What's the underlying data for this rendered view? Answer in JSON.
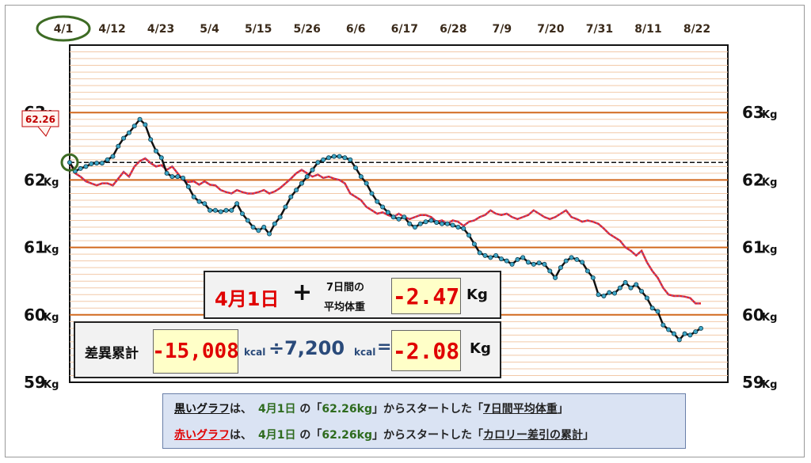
{
  "chart_data": {
    "type": "line",
    "x_ticks": [
      "4/1",
      "4/12",
      "4/23",
      "5/4",
      "5/15",
      "5/26",
      "6/6",
      "6/17",
      "6/28",
      "7/9",
      "7/20",
      "7/31",
      "8/11",
      "8/22"
    ],
    "y_ticks_left": [
      "63",
      "62",
      "61",
      "60",
      "59"
    ],
    "y_ticks_right": [
      "63",
      "62",
      "61",
      "60",
      "59"
    ],
    "y_unit": "Kg",
    "ylim": [
      59,
      64
    ],
    "reference_line": 62.26,
    "start_value_label": "62.26",
    "highlighted_tick": "4/1",
    "series": [
      {
        "color": "#111111",
        "points": [
          [
            0,
            62.26
          ],
          [
            1,
            62.13
          ],
          [
            2,
            62.17
          ],
          [
            3,
            62.2
          ],
          [
            4,
            62.24
          ],
          [
            5,
            62.25
          ],
          [
            6,
            62.25
          ],
          [
            7,
            62.3
          ],
          [
            8,
            62.35
          ],
          [
            9,
            62.5
          ],
          [
            10,
            62.62
          ],
          [
            11,
            62.7
          ],
          [
            12,
            62.8
          ],
          [
            13,
            62.9
          ],
          [
            14,
            62.82
          ],
          [
            15,
            62.6
          ],
          [
            16,
            62.43
          ],
          [
            17,
            62.33
          ],
          [
            18,
            62.1
          ],
          [
            19,
            62.05
          ],
          [
            20,
            62.05
          ],
          [
            21,
            62.03
          ],
          [
            22,
            61.9
          ],
          [
            23,
            61.75
          ],
          [
            24,
            61.68
          ],
          [
            25,
            61.65
          ],
          [
            26,
            61.55
          ],
          [
            27,
            61.55
          ],
          [
            28,
            61.53
          ],
          [
            29,
            61.55
          ],
          [
            30,
            61.55
          ],
          [
            31,
            61.65
          ],
          [
            32,
            61.5
          ],
          [
            33,
            61.4
          ],
          [
            34,
            61.3
          ],
          [
            35,
            61.25
          ],
          [
            36,
            61.3
          ],
          [
            37,
            61.2
          ],
          [
            38,
            61.35
          ],
          [
            39,
            61.45
          ],
          [
            40,
            61.6
          ],
          [
            41,
            61.75
          ],
          [
            42,
            61.85
          ],
          [
            43,
            61.95
          ],
          [
            44,
            62.05
          ],
          [
            45,
            62.15
          ],
          [
            46,
            62.26
          ],
          [
            47,
            62.3
          ],
          [
            48,
            62.33
          ],
          [
            49,
            62.35
          ],
          [
            50,
            62.35
          ],
          [
            51,
            62.33
          ],
          [
            52,
            62.3
          ],
          [
            53,
            62.18
          ],
          [
            54,
            62.05
          ],
          [
            55,
            61.95
          ],
          [
            56,
            61.8
          ],
          [
            57,
            61.68
          ],
          [
            58,
            61.6
          ],
          [
            59,
            61.52
          ],
          [
            60,
            61.45
          ],
          [
            61,
            61.42
          ],
          [
            62,
            61.45
          ],
          [
            63,
            61.35
          ],
          [
            64,
            61.3
          ],
          [
            65,
            61.35
          ],
          [
            66,
            61.38
          ],
          [
            67,
            61.4
          ],
          [
            68,
            61.37
          ],
          [
            69,
            61.35
          ],
          [
            70,
            61.35
          ],
          [
            71,
            61.33
          ],
          [
            72,
            61.3
          ],
          [
            73,
            61.28
          ],
          [
            74,
            61.18
          ],
          [
            75,
            61.05
          ],
          [
            76,
            60.92
          ],
          [
            77,
            60.88
          ],
          [
            78,
            60.85
          ],
          [
            79,
            60.88
          ],
          [
            80,
            60.83
          ],
          [
            81,
            60.8
          ],
          [
            82,
            60.75
          ],
          [
            83,
            60.82
          ],
          [
            84,
            60.85
          ],
          [
            85,
            60.78
          ],
          [
            86,
            60.75
          ],
          [
            87,
            60.77
          ],
          [
            88,
            60.75
          ],
          [
            89,
            60.65
          ],
          [
            90,
            60.55
          ],
          [
            91,
            60.7
          ],
          [
            92,
            60.8
          ],
          [
            93,
            60.85
          ],
          [
            94,
            60.82
          ],
          [
            95,
            60.78
          ],
          [
            96,
            60.65
          ],
          [
            97,
            60.55
          ],
          [
            98,
            60.3
          ],
          [
            99,
            60.28
          ],
          [
            100,
            60.33
          ],
          [
            101,
            60.32
          ],
          [
            102,
            60.4
          ],
          [
            103,
            60.48
          ],
          [
            104,
            60.4
          ],
          [
            105,
            60.45
          ],
          [
            106,
            60.35
          ],
          [
            107,
            60.25
          ],
          [
            108,
            60.1
          ],
          [
            109,
            60.05
          ],
          [
            110,
            59.85
          ],
          [
            111,
            59.78
          ],
          [
            112,
            59.72
          ],
          [
            113,
            59.63
          ],
          [
            114,
            59.72
          ],
          [
            115,
            59.7
          ],
          [
            116,
            59.75
          ],
          [
            117,
            59.8
          ]
        ]
      },
      {
        "color": "#e8252a",
        "points": [
          [
            0,
            62.26
          ],
          [
            1,
            62.1
          ],
          [
            2,
            62.05
          ],
          [
            3,
            61.98
          ],
          [
            4,
            61.95
          ],
          [
            5,
            61.92
          ],
          [
            6,
            61.95
          ],
          [
            7,
            61.95
          ],
          [
            8,
            61.92
          ],
          [
            9,
            62.02
          ],
          [
            10,
            62.12
          ],
          [
            11,
            62.05
          ],
          [
            12,
            62.2
          ],
          [
            13,
            62.28
          ],
          [
            14,
            62.32
          ],
          [
            15,
            62.25
          ],
          [
            16,
            62.2
          ],
          [
            17,
            62.22
          ],
          [
            18,
            62.15
          ],
          [
            19,
            62.2
          ],
          [
            20,
            62.1
          ],
          [
            21,
            62.0
          ],
          [
            22,
            61.97
          ],
          [
            23,
            61.98
          ],
          [
            24,
            61.93
          ],
          [
            25,
            61.98
          ],
          [
            26,
            61.93
          ],
          [
            27,
            61.92
          ],
          [
            28,
            61.85
          ],
          [
            29,
            61.82
          ],
          [
            30,
            61.8
          ],
          [
            31,
            61.85
          ],
          [
            32,
            61.82
          ],
          [
            33,
            61.8
          ],
          [
            34,
            61.8
          ],
          [
            35,
            61.82
          ],
          [
            36,
            61.85
          ],
          [
            37,
            61.8
          ],
          [
            38,
            61.83
          ],
          [
            39,
            61.88
          ],
          [
            40,
            61.95
          ],
          [
            41,
            62.02
          ],
          [
            42,
            62.1
          ],
          [
            43,
            62.15
          ],
          [
            44,
            62.1
          ],
          [
            45,
            62.05
          ],
          [
            46,
            62.08
          ],
          [
            47,
            62.03
          ],
          [
            48,
            62.05
          ],
          [
            49,
            62.02
          ],
          [
            50,
            62.0
          ],
          [
            51,
            61.95
          ],
          [
            52,
            61.8
          ],
          [
            53,
            61.75
          ],
          [
            54,
            61.7
          ],
          [
            55,
            61.6
          ],
          [
            56,
            61.55
          ],
          [
            57,
            61.5
          ],
          [
            58,
            61.52
          ],
          [
            59,
            61.48
          ],
          [
            60,
            61.45
          ],
          [
            61,
            61.5
          ],
          [
            62,
            61.45
          ],
          [
            63,
            61.42
          ],
          [
            64,
            61.45
          ],
          [
            65,
            61.48
          ],
          [
            66,
            61.48
          ],
          [
            67,
            61.45
          ],
          [
            68,
            61.38
          ],
          [
            69,
            61.4
          ],
          [
            70,
            61.35
          ],
          [
            71,
            61.4
          ],
          [
            72,
            61.38
          ],
          [
            73,
            61.32
          ],
          [
            74,
            61.38
          ],
          [
            75,
            61.4
          ],
          [
            76,
            61.45
          ],
          [
            77,
            61.48
          ],
          [
            78,
            61.55
          ],
          [
            79,
            61.5
          ],
          [
            80,
            61.48
          ],
          [
            81,
            61.5
          ],
          [
            82,
            61.45
          ],
          [
            83,
            61.42
          ],
          [
            84,
            61.45
          ],
          [
            85,
            61.48
          ],
          [
            86,
            61.55
          ],
          [
            87,
            61.5
          ],
          [
            88,
            61.45
          ],
          [
            89,
            61.42
          ],
          [
            90,
            61.45
          ],
          [
            91,
            61.5
          ],
          [
            92,
            61.55
          ],
          [
            93,
            61.45
          ],
          [
            94,
            61.42
          ],
          [
            95,
            61.38
          ],
          [
            96,
            61.4
          ],
          [
            97,
            61.38
          ],
          [
            98,
            61.35
          ],
          [
            99,
            61.28
          ],
          [
            100,
            61.2
          ],
          [
            101,
            61.15
          ],
          [
            102,
            61.1
          ],
          [
            103,
            61.0
          ],
          [
            104,
            60.95
          ],
          [
            105,
            60.88
          ],
          [
            106,
            60.95
          ],
          [
            107,
            60.78
          ],
          [
            108,
            60.65
          ],
          [
            109,
            60.55
          ],
          [
            110,
            60.4
          ],
          [
            111,
            60.3
          ],
          [
            112,
            60.28
          ],
          [
            113,
            60.28
          ],
          [
            114,
            60.27
          ],
          [
            115,
            60.25
          ],
          [
            116,
            60.17
          ],
          [
            117,
            60.17
          ]
        ]
      }
    ],
    "grid": true
  },
  "summary_box": {
    "date": "4月1日",
    "plus": "+",
    "avg_label_line1": "7日間の",
    "avg_label_line2": "平均体重",
    "avg_value": "-2.47",
    "avg_unit": "Kg"
  },
  "calc_box": {
    "label": "差異累計",
    "kcal_total": "-15,008",
    "kcal_unit1": "kcal",
    "divide": "÷7,200",
    "kcal_unit2": "kcal",
    "equals": "=",
    "result": "-2.08",
    "result_unit": "Kg"
  },
  "legend": {
    "line1": {
      "name": "黒いグラフ",
      "wa": "は、",
      "date": "4月1日",
      "no": " の「",
      "value": "62.26kg",
      "mid": "」からスタートした「",
      "target": "7日間平均体重",
      "end": "」"
    },
    "line2": {
      "name": "赤いグラフ",
      "wa": "は、",
      "date": "4月1日",
      "no": " の「",
      "value": "62.26kg",
      "mid": "」からスタートした「",
      "target": "カロリー差引の累計",
      "end": "」"
    }
  }
}
